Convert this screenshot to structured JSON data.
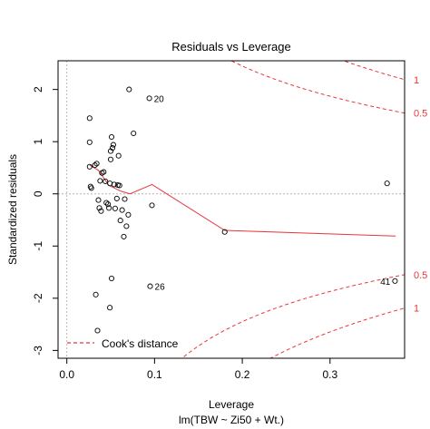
{
  "chart_data": {
    "type": "scatter",
    "title": "Residuals vs Leverage",
    "xlabel": "Leverage",
    "ylabel": "Standardized residuals",
    "subtitle": "lm(TBW ~ Zi50 + Wt.)",
    "xlim": [
      -0.01,
      0.385
    ],
    "ylim": [
      -3.15,
      2.55
    ],
    "x_ticks": [
      0.0,
      0.1,
      0.2,
      0.3
    ],
    "x_tick_labels": [
      "0.0",
      "0.1",
      "0.2",
      "0.3"
    ],
    "y_ticks": [
      -3,
      -2,
      -1,
      0,
      1,
      2
    ],
    "y_tick_labels": [
      "-3",
      "-2",
      "-1",
      "0",
      "1",
      "2"
    ],
    "points": [
      {
        "x": 0.026,
        "y": 1.45
      },
      {
        "x": 0.026,
        "y": 0.99
      },
      {
        "x": 0.026,
        "y": 0.52
      },
      {
        "x": 0.027,
        "y": 0.14
      },
      {
        "x": 0.028,
        "y": 0.11
      },
      {
        "x": 0.032,
        "y": 0.55
      },
      {
        "x": 0.034,
        "y": 0.58
      },
      {
        "x": 0.036,
        "y": -0.12
      },
      {
        "x": 0.037,
        "y": -0.27
      },
      {
        "x": 0.039,
        "y": -0.33
      },
      {
        "x": 0.033,
        "y": -1.93
      },
      {
        "x": 0.035,
        "y": -2.62
      },
      {
        "x": 0.038,
        "y": 0.25
      },
      {
        "x": 0.04,
        "y": 0.4
      },
      {
        "x": 0.042,
        "y": 0.42
      },
      {
        "x": 0.044,
        "y": 0.24
      },
      {
        "x": 0.045,
        "y": -0.17
      },
      {
        "x": 0.047,
        "y": -0.2
      },
      {
        "x": 0.048,
        "y": -0.27
      },
      {
        "x": 0.049,
        "y": 0.2
      },
      {
        "x": 0.05,
        "y": 0.66
      },
      {
        "x": 0.05,
        "y": 0.82
      },
      {
        "x": 0.051,
        "y": 1.09
      },
      {
        "x": 0.052,
        "y": 0.88
      },
      {
        "x": 0.053,
        "y": 0.94
      },
      {
        "x": 0.054,
        "y": 0.18
      },
      {
        "x": 0.055,
        "y": -0.28
      },
      {
        "x": 0.057,
        "y": -0.09
      },
      {
        "x": 0.058,
        "y": 0.17
      },
      {
        "x": 0.059,
        "y": 0.73
      },
      {
        "x": 0.06,
        "y": 0.16
      },
      {
        "x": 0.061,
        "y": -0.51
      },
      {
        "x": 0.063,
        "y": -0.31
      },
      {
        "x": 0.065,
        "y": -0.82
      },
      {
        "x": 0.066,
        "y": -0.1
      },
      {
        "x": 0.068,
        "y": -0.62
      },
      {
        "x": 0.07,
        "y": -0.4
      },
      {
        "x": 0.071,
        "y": 2.0
      },
      {
        "x": 0.076,
        "y": 1.16
      },
      {
        "x": 0.049,
        "y": -2.18
      },
      {
        "x": 0.051,
        "y": -1.62
      },
      {
        "x": 0.094,
        "y": 1.83
      },
      {
        "x": 0.097,
        "y": -0.22
      },
      {
        "x": 0.095,
        "y": -1.77
      },
      {
        "x": 0.18,
        "y": -0.73
      },
      {
        "x": 0.365,
        "y": 0.2
      },
      {
        "x": 0.374,
        "y": -1.67
      }
    ],
    "smooth_line": {
      "x": [
        0.026,
        0.036,
        0.048,
        0.062,
        0.072,
        0.097,
        0.18,
        0.375
      ],
      "y": [
        0.55,
        0.45,
        0.16,
        0.05,
        0.0,
        0.18,
        -0.7,
        -0.81
      ]
    },
    "point_labels": [
      {
        "text": "20",
        "x": 0.094,
        "y": 1.83,
        "side": "right"
      },
      {
        "text": "26",
        "x": 0.095,
        "y": -1.77,
        "side": "right"
      },
      {
        "text": "41",
        "x": 0.374,
        "y": -1.67,
        "side": "left"
      }
    ],
    "cooks_contours": [
      {
        "level": 0.5,
        "label": "0.5"
      },
      {
        "level": 1,
        "label": "1"
      }
    ],
    "num_params": 3,
    "legend": {
      "label": "Cook's distance",
      "position": "bottom-left"
    },
    "colors": {
      "points": "#000000",
      "smooth": "#e8363a",
      "cooks": "#e8363a",
      "refline": "#b5b5b5"
    }
  }
}
